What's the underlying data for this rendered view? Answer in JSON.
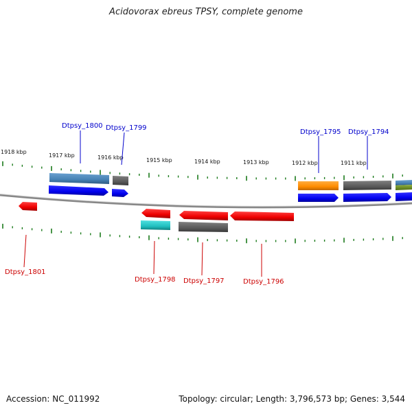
{
  "title": "Acidovorax ebreus TPSY, complete genome",
  "footer": {
    "accession": "Accession: NC_011992",
    "summary": "Topology: circular; Length: 3,796,573 bp; Genes: 3,544"
  },
  "ruler": [
    {
      "label": "1918 kbp",
      "kbp": 1918
    },
    {
      "label": "1917 kbp",
      "kbp": 1917
    },
    {
      "label": "1916 kbp",
      "kbp": 1916
    },
    {
      "label": "1915 kbp",
      "kbp": 1915
    },
    {
      "label": "1914 kbp",
      "kbp": 1914
    },
    {
      "label": "1913 kbp",
      "kbp": 1913
    },
    {
      "label": "1912 kbp",
      "kbp": 1912
    },
    {
      "label": "1911 kbp",
      "kbp": 1911
    }
  ],
  "gene_labels": [
    {
      "label": "Dtpsy_1800",
      "strand": "forward",
      "color": "#0000cc"
    },
    {
      "label": "Dtpsy_1799",
      "strand": "forward",
      "color": "#0000cc"
    },
    {
      "label": "Dtpsy_1795",
      "strand": "forward",
      "color": "#0000cc"
    },
    {
      "label": "Dtpsy_1794",
      "strand": "forward",
      "color": "#0000cc"
    },
    {
      "label": "Dtpsy_1801",
      "strand": "reverse",
      "color": "#cc0000"
    },
    {
      "label": "Dtpsy_1798",
      "strand": "reverse",
      "color": "#cc0000"
    },
    {
      "label": "Dtpsy_1797",
      "strand": "reverse",
      "color": "#cc0000"
    },
    {
      "label": "Dtpsy_1796",
      "strand": "reverse",
      "color": "#cc0000"
    }
  ],
  "colors": {
    "forward_cds": "#0000ee",
    "reverse_cds": "#ee0000",
    "feature_steelblue": "#4682b4",
    "feature_gray": "#5a5a5a",
    "feature_orange": "#ff8c00",
    "feature_cyan": "#20c0c0",
    "feature_olive": "#6b8e23",
    "backbone": "#888888",
    "ticks": "#1a7a1a"
  }
}
